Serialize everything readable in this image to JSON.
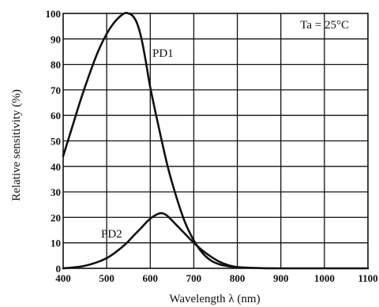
{
  "chart_data": {
    "type": "line",
    "title": "",
    "xlabel": "Wavelength λ (nm)",
    "ylabel": "Relative sensitivity (%)",
    "xlim": [
      400,
      1100
    ],
    "ylim": [
      0,
      100
    ],
    "xticks": [
      "400",
      "500",
      "600",
      "700",
      "800",
      "900",
      "1000",
      "1100"
    ],
    "yticks": [
      "0",
      "10",
      "20",
      "30",
      "40",
      "50",
      "60",
      "70",
      "80",
      "90",
      "100"
    ],
    "grid": true,
    "legend": "none",
    "annotation": "Ta = 25°C",
    "series": [
      {
        "name": "PD1",
        "x": [
          400,
          420,
          440,
          460,
          480,
          500,
          520,
          540,
          550,
          560,
          570,
          580,
          590,
          600,
          620,
          640,
          660,
          680,
          700,
          720,
          740,
          760,
          780,
          800
        ],
        "y": [
          44,
          55,
          66,
          76,
          85,
          92,
          97,
          100,
          100,
          99,
          96,
          90,
          81,
          71,
          55,
          40,
          28,
          18,
          11,
          6,
          3,
          1.5,
          0.8,
          0.3
        ]
      },
      {
        "name": "PD2",
        "x": [
          400,
          450,
          500,
          540,
          560,
          580,
          600,
          620,
          630,
          640,
          660,
          680,
          700,
          720,
          740,
          760,
          780,
          800,
          850,
          900,
          1000,
          1100
        ],
        "y": [
          0,
          1,
          4,
          9,
          12.5,
          16,
          19.5,
          21.5,
          21.5,
          20.5,
          17,
          13.5,
          10,
          7,
          4.5,
          2.5,
          1.2,
          0.5,
          0.1,
          0,
          0,
          0
        ]
      }
    ]
  }
}
